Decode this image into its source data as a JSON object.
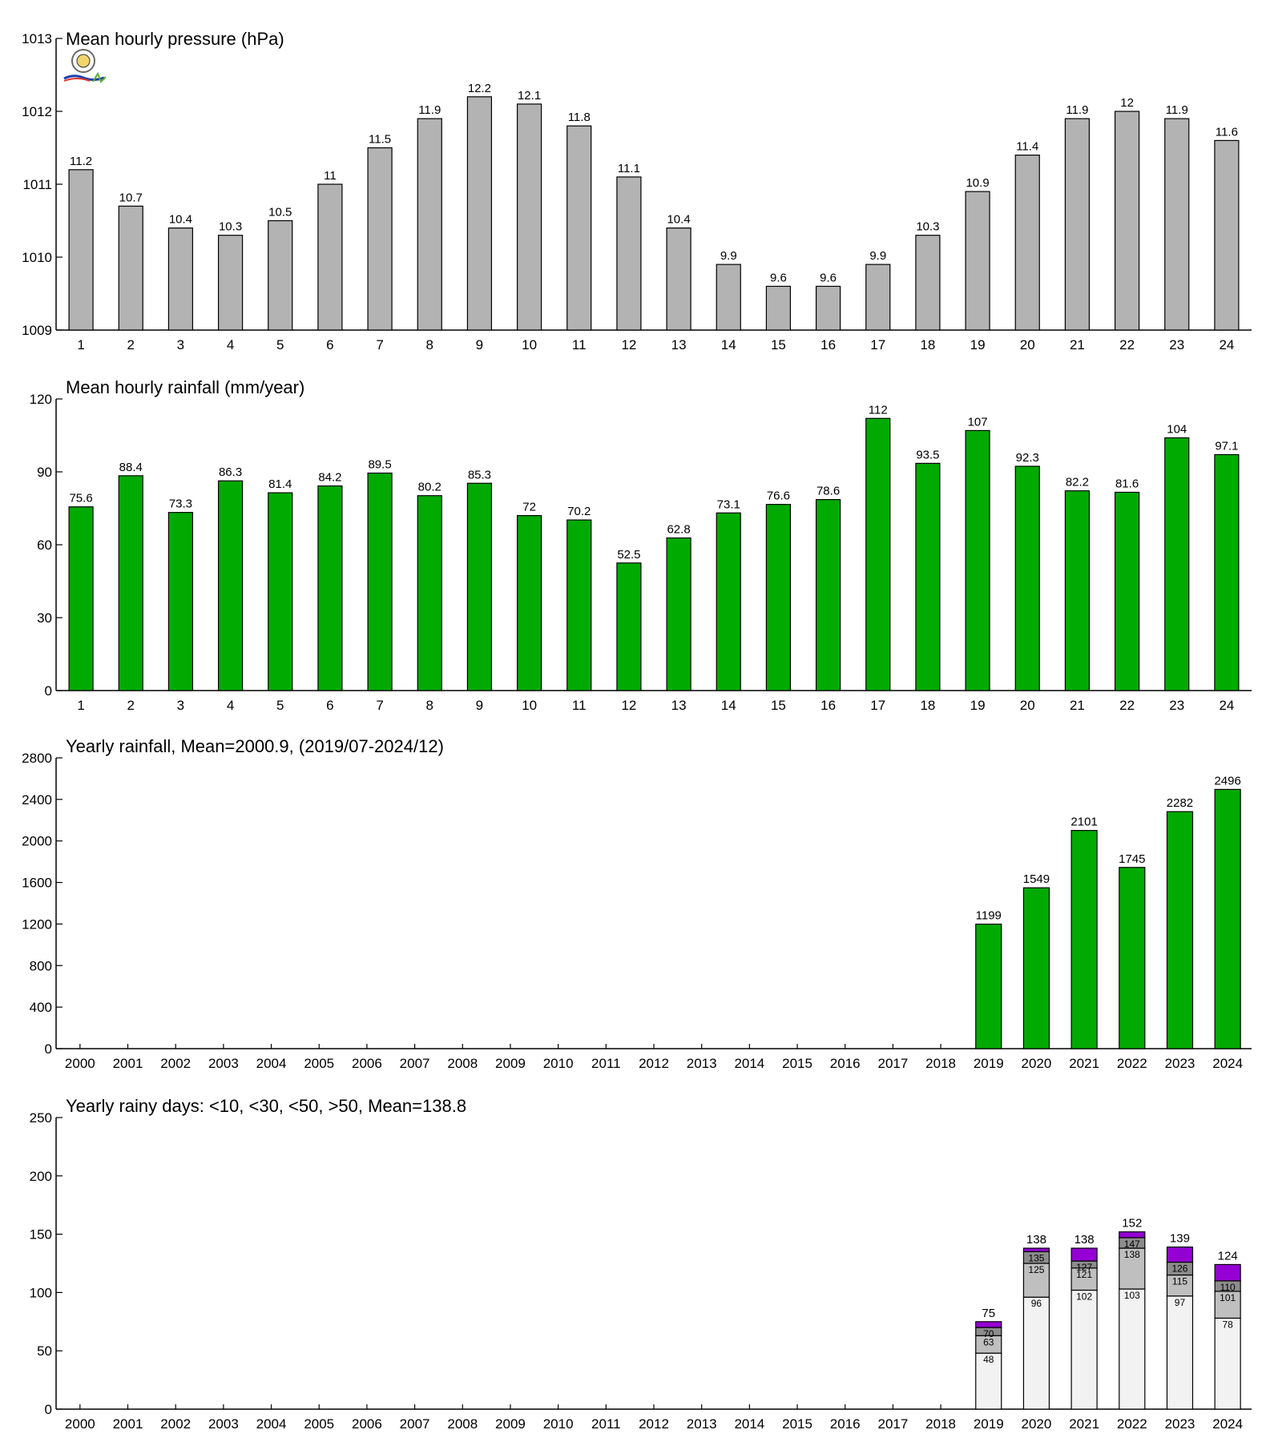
{
  "charts": [
    {
      "type": "bar",
      "title": "Mean hourly pressure (hPa)",
      "categories": [
        "1",
        "2",
        "3",
        "4",
        "5",
        "6",
        "7",
        "8",
        "9",
        "10",
        "11",
        "12",
        "13",
        "14",
        "15",
        "16",
        "17",
        "18",
        "19",
        "20",
        "21",
        "22",
        "23",
        "24"
      ],
      "values": [
        1011.2,
        1010.7,
        1010.4,
        1010.3,
        1010.5,
        1011.0,
        1011.5,
        1011.9,
        1012.2,
        1012.1,
        1011.8,
        1011.1,
        1010.4,
        1009.9,
        1009.6,
        1009.6,
        1009.9,
        1010.3,
        1010.9,
        1011.4,
        1011.9,
        1012.0,
        1011.9,
        1011.6
      ],
      "value_labels": [
        "11.2",
        "10.7",
        "10.4",
        "10.3",
        "10.5",
        "11",
        "11.5",
        "11.9",
        "12.2",
        "12.1",
        "11.8",
        "11.1",
        "10.4",
        "9.9",
        "9.6",
        "9.6",
        "9.9",
        "10.3",
        "10.9",
        "11.4",
        "11.9",
        "12",
        "11.9",
        "11.6"
      ],
      "ylim": [
        1009,
        1013
      ],
      "yticks": [
        1009,
        1010,
        1011,
        1012,
        1013
      ],
      "color": "#b3b3b3",
      "has_logo": true
    },
    {
      "type": "bar",
      "title": "Mean hourly rainfall (mm/year)",
      "categories": [
        "1",
        "2",
        "3",
        "4",
        "5",
        "6",
        "7",
        "8",
        "9",
        "10",
        "11",
        "12",
        "13",
        "14",
        "15",
        "16",
        "17",
        "18",
        "19",
        "20",
        "21",
        "22",
        "23",
        "24"
      ],
      "values": [
        75.6,
        88.4,
        73.3,
        86.3,
        81.4,
        84.2,
        89.5,
        80.2,
        85.3,
        72,
        70.2,
        52.5,
        62.8,
        73.1,
        76.6,
        78.6,
        112,
        93.5,
        107,
        92.3,
        82.2,
        81.6,
        104,
        97.1
      ],
      "value_labels": [
        "75.6",
        "88.4",
        "73.3",
        "86.3",
        "81.4",
        "84.2",
        "89.5",
        "80.2",
        "85.3",
        "72",
        "70.2",
        "52.5",
        "62.8",
        "73.1",
        "76.6",
        "78.6",
        "112",
        "93.5",
        "107",
        "92.3",
        "82.2",
        "81.6",
        "104",
        "97.1"
      ],
      "ylim": [
        0,
        120
      ],
      "yticks": [
        0,
        30,
        60,
        90,
        120
      ],
      "color": "#00aa00"
    },
    {
      "type": "bar",
      "title": "Yearly rainfall, Mean=2000.9, (2019/07-2024/12)",
      "categories": [
        "2000",
        "2001",
        "2002",
        "2003",
        "2004",
        "2005",
        "2006",
        "2007",
        "2008",
        "2009",
        "2010",
        "2011",
        "2012",
        "2013",
        "2014",
        "2015",
        "2016",
        "2017",
        "2018",
        "2019",
        "2020",
        "2021",
        "2022",
        "2023",
        "2024"
      ],
      "values": [
        null,
        null,
        null,
        null,
        null,
        null,
        null,
        null,
        null,
        null,
        null,
        null,
        null,
        null,
        null,
        null,
        null,
        null,
        null,
        1199,
        1549,
        2101,
        1745,
        2282,
        2496
      ],
      "value_labels": [
        "",
        "",
        "",
        "",
        "",
        "",
        "",
        "",
        "",
        "",
        "",
        "",
        "",
        "",
        "",
        "",
        "",
        "",
        "",
        "1199",
        "1549",
        "2101",
        "1745",
        "2282",
        "2496"
      ],
      "ylim": [
        0,
        2800
      ],
      "yticks": [
        0,
        400,
        800,
        1200,
        1600,
        2000,
        2400,
        2800
      ],
      "color": "#00aa00"
    },
    {
      "type": "stacked-bar",
      "title": "Yearly rainy days: <10, <30, <50, >50, Mean=138.8",
      "categories": [
        "2000",
        "2001",
        "2002",
        "2003",
        "2004",
        "2005",
        "2006",
        "2007",
        "2008",
        "2009",
        "2010",
        "2011",
        "2012",
        "2013",
        "2014",
        "2015",
        "2016",
        "2017",
        "2018",
        "2019",
        "2020",
        "2021",
        "2022",
        "2023",
        "2024"
      ],
      "ylim": [
        0,
        250
      ],
      "yticks": [
        0,
        50,
        100,
        150,
        200,
        250
      ],
      "colors": [
        "#f2f2f2",
        "#bfbfbf",
        "#8c8c8c",
        "#9400d3"
      ],
      "stacks": [
        {
          "year": "2019",
          "cumulative": [
            48,
            63,
            70,
            75
          ],
          "labels": [
            "48",
            "63",
            "70"
          ],
          "total_label": "75"
        },
        {
          "year": "2020",
          "cumulative": [
            96,
            125,
            135,
            138
          ],
          "labels": [
            "96",
            "125",
            "135"
          ],
          "total_label": "138"
        },
        {
          "year": "2021",
          "cumulative": [
            102,
            121,
            127,
            138
          ],
          "labels": [
            "102",
            "121",
            "127"
          ],
          "total_label": "138"
        },
        {
          "year": "2022",
          "cumulative": [
            103,
            138,
            147,
            152
          ],
          "labels": [
            "103",
            "138",
            "147"
          ],
          "total_label": "152"
        },
        {
          "year": "2023",
          "cumulative": [
            97,
            115,
            126,
            139
          ],
          "labels": [
            "97",
            "115",
            "126"
          ],
          "total_label": "139"
        },
        {
          "year": "2024",
          "cumulative": [
            78,
            101,
            110,
            124
          ],
          "labels": [
            "78",
            "101",
            "110"
          ],
          "total_label": "124"
        }
      ]
    }
  ]
}
